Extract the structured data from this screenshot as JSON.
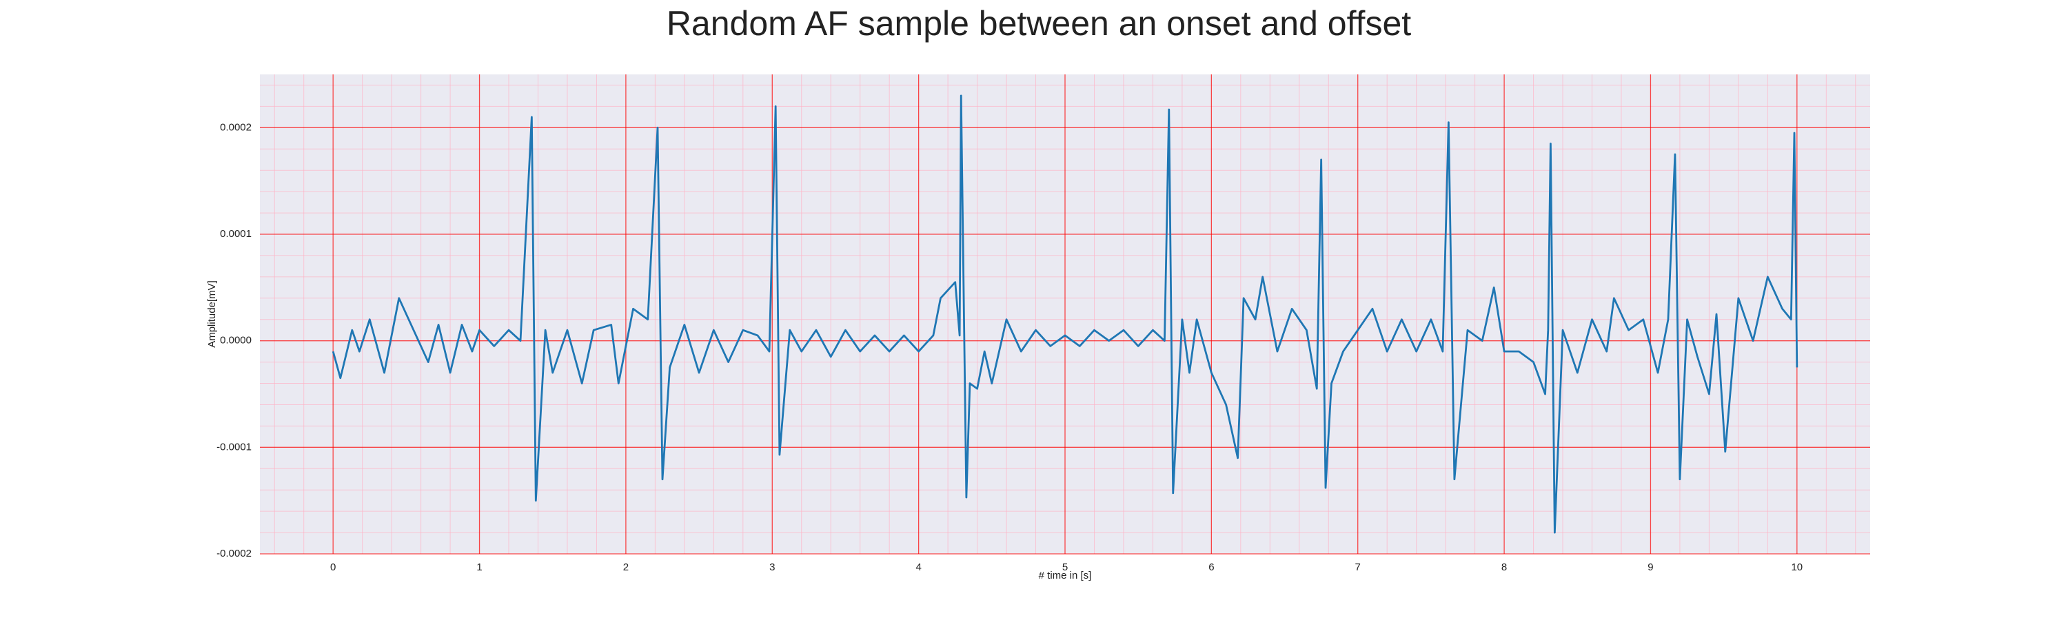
{
  "chart_data": {
    "type": "line",
    "title": "Random AF sample between an onset and offset",
    "xlabel": "# time in [s]",
    "ylabel": "Amplitude[mV]",
    "xlim": [
      -0.5,
      10.5
    ],
    "ylim": [
      -0.0002,
      0.00025
    ],
    "xticks": [
      0,
      1,
      2,
      3,
      4,
      5,
      6,
      7,
      8,
      9,
      10
    ],
    "yticks": [
      {
        "value": -0.0002,
        "label": "-0.0002"
      },
      {
        "value": -0.0001,
        "label": "-0.0001"
      },
      {
        "value": 0,
        "label": "0.0000"
      },
      {
        "value": 0.0001,
        "label": "0.0001"
      },
      {
        "value": 0.0002,
        "label": "0.0002"
      }
    ],
    "xminorticks": [
      -0.4,
      -0.2,
      0.2,
      0.4,
      0.6,
      0.8,
      1.2,
      1.4,
      1.6,
      1.8,
      2.2,
      2.4,
      2.6,
      2.8,
      3.2,
      3.4,
      3.6,
      3.8,
      4.2,
      4.4,
      4.6,
      4.8,
      5.2,
      5.4,
      5.6,
      5.8,
      6.2,
      6.4,
      6.6,
      6.8,
      7.2,
      7.4,
      7.6,
      7.8,
      8.2,
      8.4,
      8.6,
      8.8,
      9.2,
      9.4,
      9.6,
      9.8,
      10.2,
      10.4
    ],
    "yminorticks": [
      -0.00018,
      -0.00016,
      -0.00014,
      -0.00012,
      -8e-05,
      -6e-05,
      -4e-05,
      -2e-05,
      2e-05,
      4e-05,
      6e-05,
      8e-05,
      0.00012,
      0.00014,
      0.00016,
      0.00018,
      0.00022,
      0.00024
    ],
    "grid": true,
    "grid_color": "#ff0000",
    "minor_grid_color": "#ffb3c6",
    "background": "#eaeaf2",
    "series": [
      {
        "color": "#1f77b4",
        "x": [
          0,
          0.05,
          0.13,
          0.18,
          0.25,
          0.35,
          0.45,
          0.55,
          0.65,
          0.72,
          0.8,
          0.88,
          0.95,
          1.0,
          1.1,
          1.2,
          1.28,
          1.357,
          1.385,
          1.45,
          1.5,
          1.6,
          1.7,
          1.78,
          1.9,
          1.95,
          2.05,
          2.15,
          2.217,
          2.25,
          2.3,
          2.4,
          2.5,
          2.6,
          2.7,
          2.8,
          2.9,
          2.98,
          3.023,
          3.05,
          3.12,
          3.2,
          3.3,
          3.4,
          3.5,
          3.6,
          3.7,
          3.8,
          3.9,
          4.0,
          4.1,
          4.15,
          4.25,
          4.28,
          4.29,
          4.326,
          4.35,
          4.4,
          4.45,
          4.5,
          4.6,
          4.7,
          4.8,
          4.9,
          5.0,
          5.1,
          5.2,
          5.3,
          5.4,
          5.5,
          5.6,
          5.68,
          5.71,
          5.738,
          5.8,
          5.85,
          5.9,
          6.0,
          6.1,
          6.18,
          6.22,
          6.3,
          6.35,
          6.45,
          6.55,
          6.65,
          6.72,
          6.75,
          6.78,
          6.82,
          6.9,
          7.0,
          7.1,
          7.2,
          7.3,
          7.4,
          7.5,
          7.58,
          7.62,
          7.66,
          7.75,
          7.85,
          7.93,
          8.0,
          8.1,
          8.2,
          8.28,
          8.3,
          8.317,
          8.345,
          8.4,
          8.5,
          8.6,
          8.7,
          8.75,
          8.85,
          8.95,
          9.05,
          9.12,
          9.167,
          9.2,
          9.25,
          9.32,
          9.4,
          9.45,
          9.51,
          9.6,
          9.7,
          9.8,
          9.9,
          9.96,
          9.982,
          10.0
        ],
        "values": [
          -1e-05,
          -3.5e-05,
          1e-05,
          -1e-05,
          2e-05,
          -3e-05,
          4e-05,
          1e-05,
          -2e-05,
          1.5e-05,
          -3e-05,
          1.5e-05,
          -1e-05,
          1e-05,
          -5e-06,
          1e-05,
          0,
          0.00021,
          -0.00015,
          1e-05,
          -3e-05,
          1e-05,
          -4e-05,
          1e-05,
          1.5e-05,
          -4e-05,
          3e-05,
          2e-05,
          0.0002,
          -0.00013,
          -2.5e-05,
          1.5e-05,
          -3e-05,
          1e-05,
          -2e-05,
          1e-05,
          5e-06,
          -1e-05,
          0.00022,
          -0.000107,
          1e-05,
          -1e-05,
          1e-05,
          -1.5e-05,
          1e-05,
          -1e-05,
          5e-06,
          -1e-05,
          5e-06,
          -1e-05,
          5e-06,
          4e-05,
          5.5e-05,
          5e-06,
          0.00023,
          -0.000147,
          -4e-05,
          -4.5e-05,
          -1e-05,
          -4e-05,
          2e-05,
          -1e-05,
          1e-05,
          -5e-06,
          5e-06,
          -5e-06,
          1e-05,
          0,
          1e-05,
          -5e-06,
          1e-05,
          0,
          0.000217,
          -0.000143,
          2e-05,
          -3e-05,
          2e-05,
          -3e-05,
          -6e-05,
          -0.00011,
          4e-05,
          2e-05,
          6e-05,
          -1e-05,
          3e-05,
          1e-05,
          -4.5e-05,
          0.00017,
          -0.000138,
          -4e-05,
          -1e-05,
          1e-05,
          3e-05,
          -1e-05,
          2e-05,
          -1e-05,
          2e-05,
          -1e-05,
          0.000205,
          -0.00013,
          1e-05,
          0,
          5e-05,
          -1e-05,
          -1e-05,
          -2e-05,
          -5e-05,
          1e-05,
          0.000185,
          -0.00018,
          1e-05,
          -3e-05,
          2e-05,
          -1e-05,
          4e-05,
          1e-05,
          2e-05,
          -3e-05,
          2e-05,
          0.000175,
          -0.00013,
          2e-05,
          -1.5e-05,
          -5e-05,
          2.5e-05,
          -0.000104,
          4e-05,
          0,
          6e-05,
          3e-05,
          2e-05,
          0.000195,
          -2.5e-05
        ]
      }
    ]
  }
}
